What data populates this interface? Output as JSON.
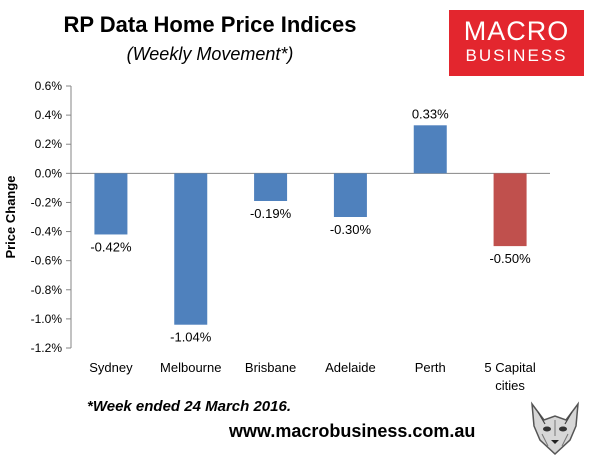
{
  "chart_data": {
    "type": "bar",
    "title": "RP Data Home Price Indices",
    "subtitle": "(Weekly Movement*)",
    "ylabel": "Price Change",
    "categories": [
      "Sydney",
      "Melbourne",
      "Brisbane",
      "Adelaide",
      "Perth",
      "5 Capital cities"
    ],
    "values": [
      -0.42,
      -1.04,
      -0.19,
      -0.3,
      0.33,
      -0.5
    ],
    "data_labels": [
      "-0.42%",
      "-1.04%",
      "-0.19%",
      "-0.30%",
      "0.33%",
      "-0.50%"
    ],
    "ylim": [
      -1.2,
      0.6
    ],
    "yticks": [
      0.6,
      0.4,
      0.2,
      0.0,
      -0.2,
      -0.4,
      -0.6,
      -0.8,
      -1.0,
      -1.2
    ],
    "ytick_labels": [
      "0.6%",
      "0.4%",
      "0.2%",
      "0.0%",
      "-0.2%",
      "-0.4%",
      "-0.6%",
      "-0.8%",
      "-1.0%",
      "-1.2%"
    ],
    "bar_colors": [
      "#4f81bd",
      "#4f81bd",
      "#4f81bd",
      "#4f81bd",
      "#4f81bd",
      "#c0504d"
    ],
    "grid": false,
    "legend": false
  },
  "footnote": "*Week ended 24 March 2016.",
  "website": "www.macrobusiness.com.au",
  "logo": {
    "line1": "MACRO",
    "line2": "BUSINESS",
    "color": "#e3262e"
  },
  "mascot": "wolf-icon"
}
